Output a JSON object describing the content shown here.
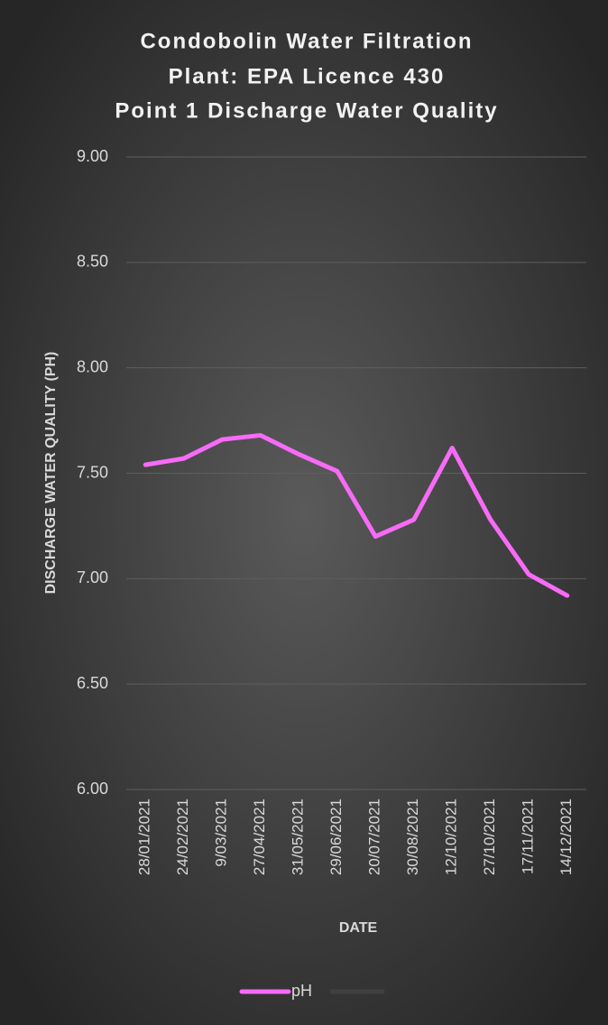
{
  "chart_data": {
    "type": "line",
    "title": [
      "Condobolin Water Filtration",
      "Plant: EPA Licence 430",
      "Point 1 Discharge Water Quality"
    ],
    "y_label": "DISCHARGE WATER QUALITY (PH)",
    "x_label": "DATE",
    "categories": [
      "28/01/2021",
      "24/02/2021",
      "9/03/2021",
      "27/04/2021",
      "31/05/2021",
      "29/06/2021",
      "20/07/2021",
      "30/08/2021",
      "12/10/2021",
      "27/10/2021",
      "17/11/2021",
      "14/12/2021"
    ],
    "series": [
      {
        "name": "pH",
        "color": "#f76bf7",
        "values": [
          7.54,
          7.57,
          7.66,
          7.68,
          7.59,
          7.51,
          7.2,
          7.28,
          7.62,
          7.28,
          7.02,
          6.92
        ]
      }
    ],
    "ylim": [
      6,
      9
    ],
    "yticks": [
      {
        "value": 6,
        "label": "6.00"
      },
      {
        "value": 6.5,
        "label": "6.50"
      },
      {
        "value": 7,
        "label": "7.00"
      },
      {
        "value": 7.5,
        "label": "7.50"
      },
      {
        "value": 8,
        "label": "8.00"
      },
      {
        "value": 8.5,
        "label": "8.50"
      },
      {
        "value": 9,
        "label": "9.00"
      }
    ],
    "grid": true
  }
}
